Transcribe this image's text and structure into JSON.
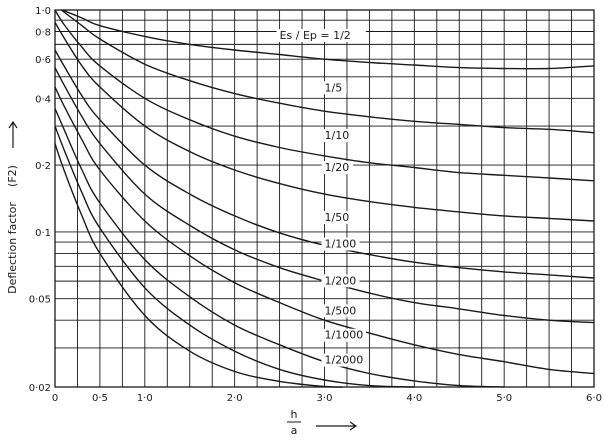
{
  "chart_data": {
    "type": "line",
    "xlabel_numerator": "h",
    "xlabel_denominator": "a",
    "ylabel_main": "Deflection  factor",
    "ylabel_symbol": "(F2)",
    "xlim": [
      0,
      6.0
    ],
    "ylim": [
      0.02,
      1.0
    ],
    "y_scale": "log",
    "grid": true,
    "x_ticks": [
      {
        "value": 0,
        "label": "0"
      },
      {
        "value": 0.5,
        "label": "0·5"
      },
      {
        "value": 1.0,
        "label": "1·0"
      },
      {
        "value": 2.0,
        "label": "2·0"
      },
      {
        "value": 3.0,
        "label": "3·0"
      },
      {
        "value": 4.0,
        "label": "4·0"
      },
      {
        "value": 5.0,
        "label": "5·0"
      },
      {
        "value": 6.0,
        "label": "6·0"
      }
    ],
    "y_ticks": [
      {
        "value": 1.0,
        "label": "1·0"
      },
      {
        "value": 0.8,
        "label": "0·8"
      },
      {
        "value": 0.6,
        "label": "0·6"
      },
      {
        "value": 0.4,
        "label": "0·4"
      },
      {
        "value": 0.2,
        "label": "0·2"
      },
      {
        "value": 0.1,
        "label": "0·1"
      },
      {
        "value": 0.05,
        "label": "0·05"
      },
      {
        "value": 0.02,
        "label": "0·02"
      }
    ],
    "series": [
      {
        "name": "Es / Ep = 1/2",
        "x": [
          0.08,
          0.3,
          0.5,
          1.0,
          1.5,
          2.0,
          2.5,
          3.0,
          3.5,
          4.0,
          4.5,
          5.0,
          5.5,
          6.0
        ],
        "y": [
          1.0,
          0.92,
          0.85,
          0.76,
          0.7,
          0.66,
          0.63,
          0.6,
          0.58,
          0.565,
          0.55,
          0.545,
          0.545,
          0.56
        ]
      },
      {
        "name": "1/5",
        "x": [
          0.07,
          0.3,
          0.5,
          1.0,
          1.5,
          2.0,
          2.5,
          3.0,
          3.5,
          4.0,
          4.5,
          5.0,
          5.5,
          6.0
        ],
        "y": [
          1.0,
          0.85,
          0.74,
          0.57,
          0.48,
          0.42,
          0.38,
          0.35,
          0.33,
          0.315,
          0.305,
          0.295,
          0.29,
          0.28
        ]
      },
      {
        "name": "1/10",
        "x": [
          0.0,
          0.1,
          0.3,
          0.5,
          1.0,
          1.5,
          2.0,
          2.5,
          3.0,
          3.5,
          4.0,
          4.5,
          5.0,
          5.5,
          6.0
        ],
        "y": [
          1.0,
          0.86,
          0.68,
          0.56,
          0.4,
          0.32,
          0.27,
          0.24,
          0.22,
          0.205,
          0.195,
          0.185,
          0.18,
          0.175,
          0.17
        ]
      },
      {
        "name": "1/20",
        "x": [
          0.0,
          0.1,
          0.3,
          0.5,
          1.0,
          1.5,
          2.0,
          2.5,
          3.0,
          3.5,
          4.0,
          4.5,
          5.0,
          5.5,
          6.0
        ],
        "y": [
          0.88,
          0.75,
          0.56,
          0.45,
          0.3,
          0.23,
          0.19,
          0.165,
          0.148,
          0.137,
          0.129,
          0.123,
          0.118,
          0.115,
          0.112
        ]
      },
      {
        "name": "1/50",
        "x": [
          0.0,
          0.1,
          0.3,
          0.5,
          1.0,
          1.5,
          2.0,
          2.5,
          3.0,
          3.5,
          4.0,
          4.5,
          5.0,
          5.5,
          6.0
        ],
        "y": [
          0.66,
          0.56,
          0.41,
          0.32,
          0.2,
          0.148,
          0.118,
          0.099,
          0.087,
          0.079,
          0.073,
          0.069,
          0.066,
          0.064,
          0.062
        ]
      },
      {
        "name": "1/100",
        "x": [
          0.0,
          0.1,
          0.3,
          0.5,
          1.0,
          1.5,
          2.0,
          2.5,
          3.0,
          3.5,
          4.0,
          4.5,
          5.0,
          5.5,
          6.0
        ],
        "y": [
          0.55,
          0.46,
          0.33,
          0.25,
          0.148,
          0.107,
          0.083,
          0.069,
          0.06,
          0.053,
          0.048,
          0.045,
          0.042,
          0.04,
          0.039
        ]
      },
      {
        "name": "1/200",
        "x": [
          0.0,
          0.1,
          0.3,
          0.5,
          1.0,
          1.5,
          2.0,
          2.5,
          3.0,
          3.5,
          4.0,
          4.5,
          5.0,
          5.5,
          6.0
        ],
        "y": [
          0.45,
          0.37,
          0.26,
          0.19,
          0.112,
          0.078,
          0.059,
          0.048,
          0.04,
          0.035,
          0.031,
          0.028,
          0.026,
          0.024,
          0.023
        ]
      },
      {
        "name": "1/500",
        "x": [
          0.0,
          0.1,
          0.3,
          0.5,
          1.0,
          1.5,
          2.0,
          2.5,
          3.0,
          3.5,
          4.0,
          4.5,
          5.0
        ],
        "y": [
          0.36,
          0.29,
          0.19,
          0.135,
          0.075,
          0.051,
          0.038,
          0.031,
          0.026,
          0.023,
          0.0213,
          0.0203,
          0.02
        ]
      },
      {
        "name": "1/1000",
        "x": [
          0.0,
          0.1,
          0.3,
          0.5,
          1.0,
          1.5,
          2.0,
          2.5,
          3.0,
          3.5,
          4.0
        ],
        "y": [
          0.3,
          0.235,
          0.15,
          0.104,
          0.056,
          0.038,
          0.029,
          0.024,
          0.0215,
          0.0203,
          0.02
        ]
      },
      {
        "name": "1/2000",
        "x": [
          0.0,
          0.1,
          0.3,
          0.5,
          1.0,
          1.5,
          2.0,
          2.5,
          3.0,
          3.2
        ],
        "y": [
          0.25,
          0.19,
          0.118,
          0.08,
          0.042,
          0.029,
          0.0235,
          0.0212,
          0.0201,
          0.02
        ]
      }
    ],
    "curve_labels": [
      {
        "text": "Es / Ep = 1/2",
        "x": 2.5,
        "y": 0.74
      },
      {
        "text": "1/5",
        "x": 3.0,
        "y": 0.43
      },
      {
        "text": "1/10",
        "x": 3.0,
        "y": 0.262
      },
      {
        "text": "1/20",
        "x": 3.0,
        "y": 0.188
      },
      {
        "text": "1/50",
        "x": 3.0,
        "y": 0.112
      },
      {
        "text": "1/100",
        "x": 3.0,
        "y": 0.085
      },
      {
        "text": "1/200",
        "x": 3.0,
        "y": 0.058
      },
      {
        "text": "1/500",
        "x": 3.0,
        "y": 0.0425
      },
      {
        "text": "1/1000",
        "x": 3.0,
        "y": 0.033
      },
      {
        "text": "1/2000",
        "x": 3.0,
        "y": 0.0255
      }
    ]
  }
}
